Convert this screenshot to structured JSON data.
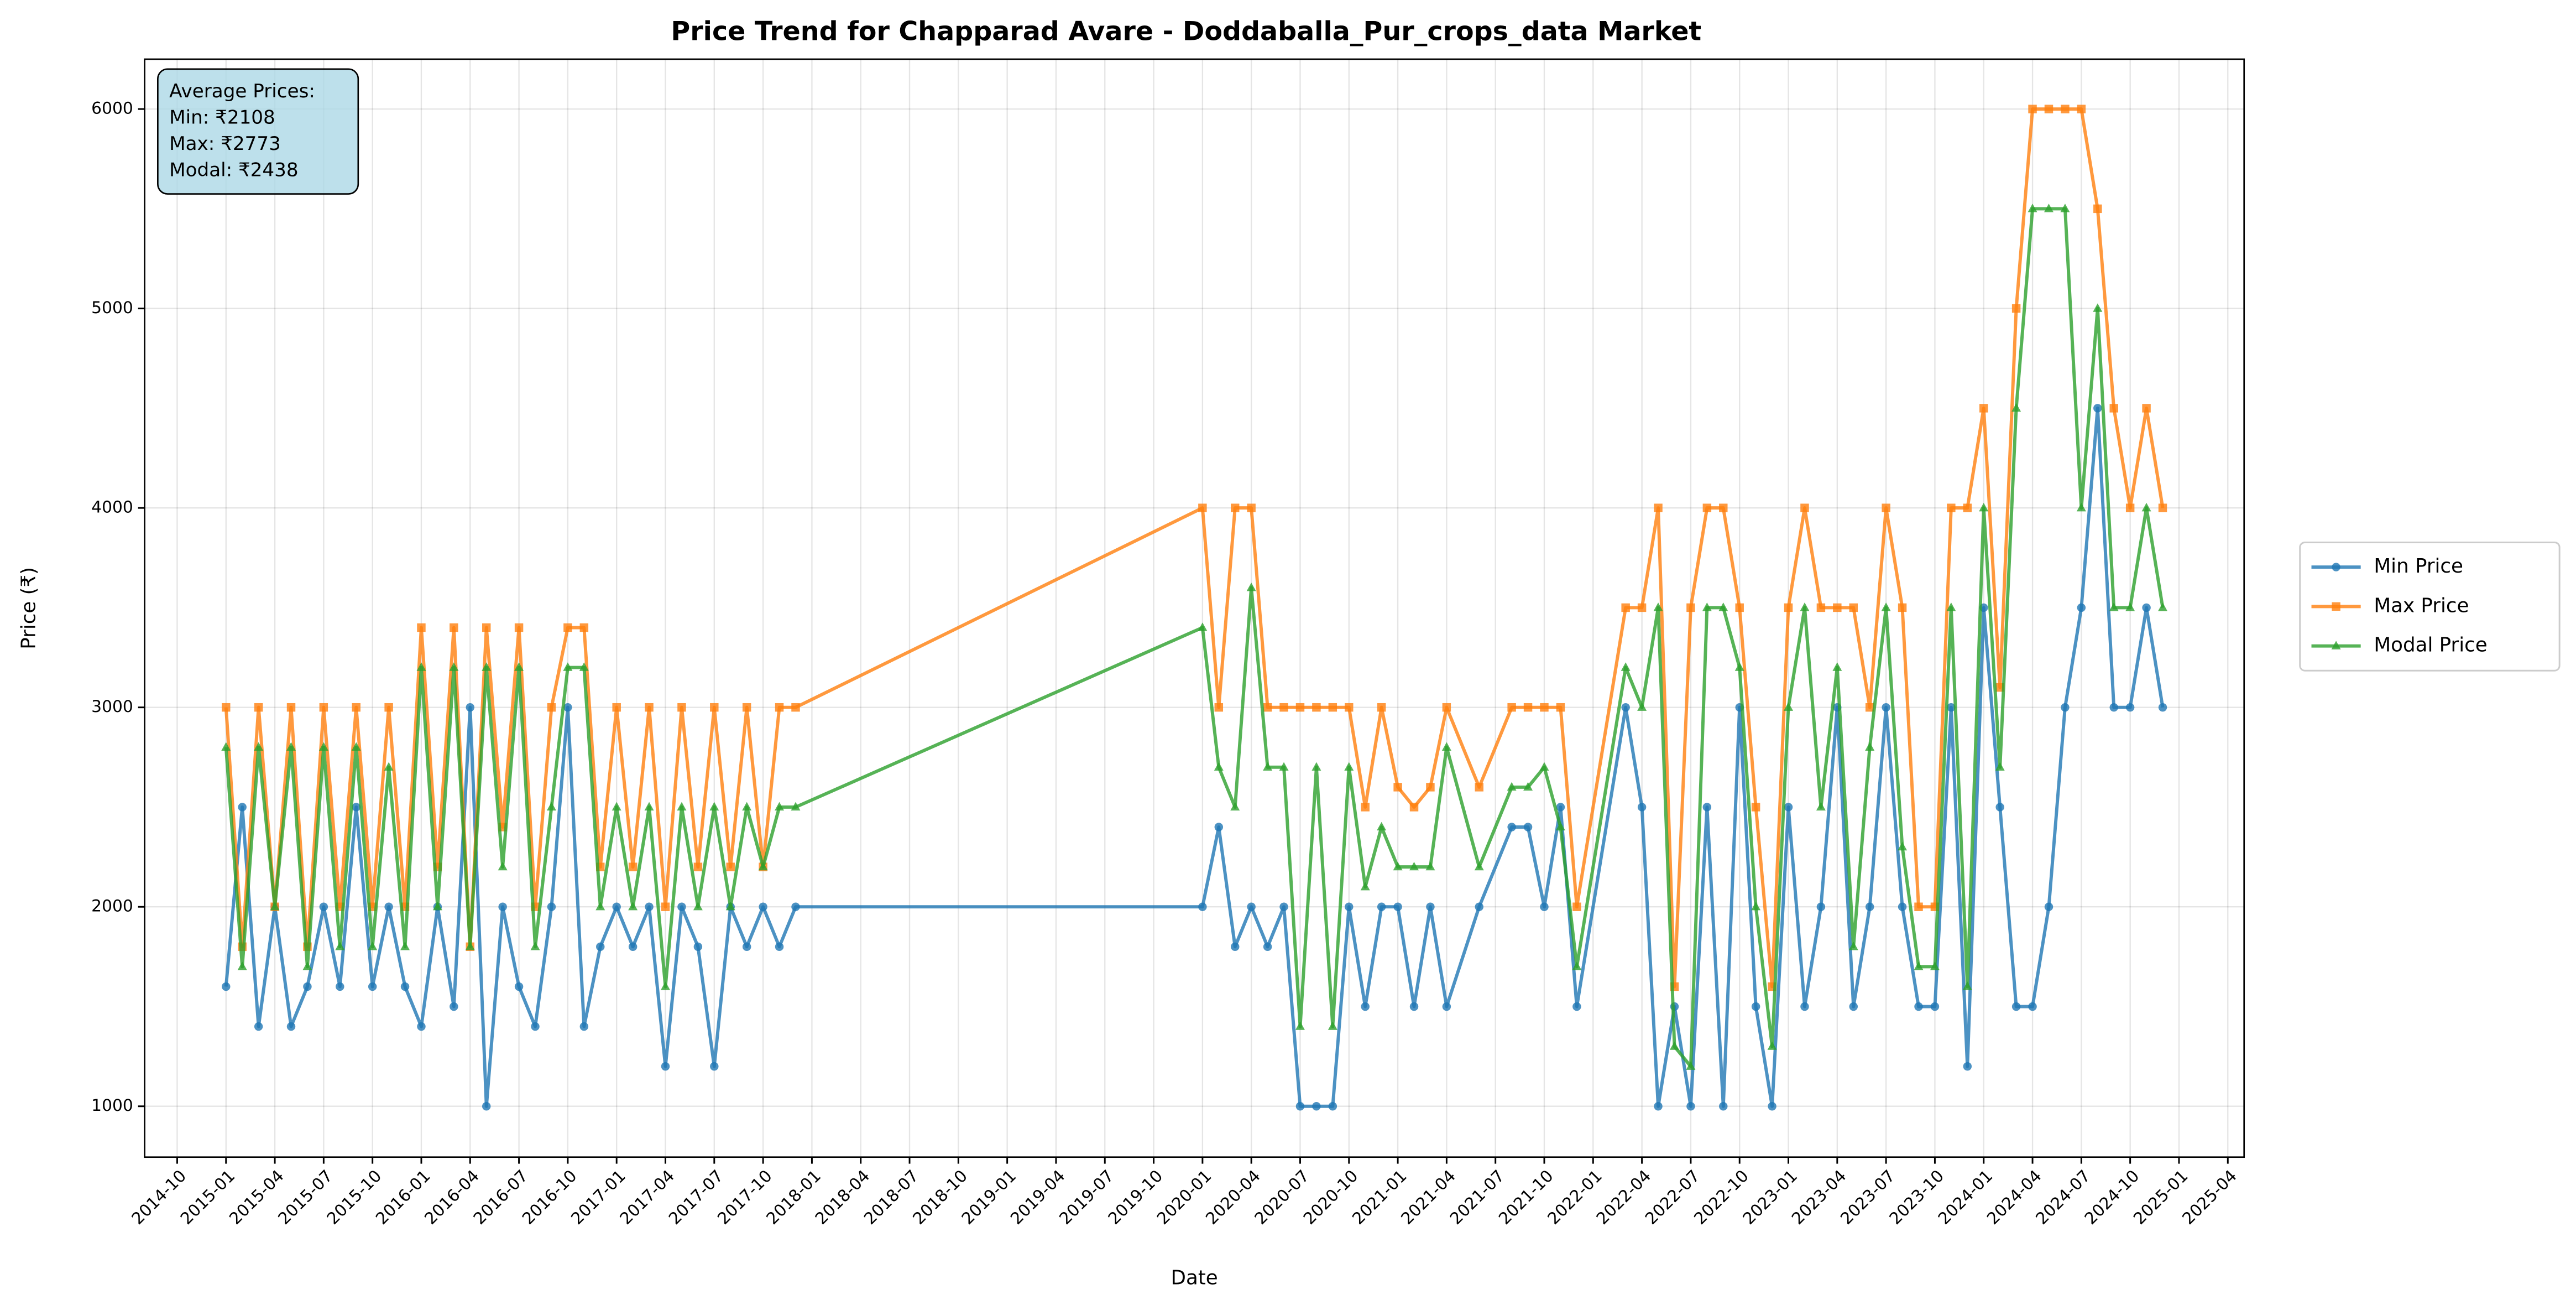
{
  "chart_data": {
    "type": "line",
    "title": "Price Trend for Chapparad Avare - Doddaballa_Pur_crops_data Market",
    "xlabel": "Date",
    "ylabel": "Price (₹)",
    "annotation": [
      "Average Prices:",
      "Min: ₹2108",
      "Max: ₹2773",
      "Modal: ₹2438"
    ],
    "x": [
      "2015-01",
      "2015-02",
      "2015-03",
      "2015-04",
      "2015-05",
      "2015-06",
      "2015-07",
      "2015-08",
      "2015-09",
      "2015-10",
      "2015-11",
      "2015-12",
      "2016-01",
      "2016-02",
      "2016-03",
      "2016-04",
      "2016-05",
      "2016-06",
      "2016-07",
      "2016-08",
      "2016-09",
      "2016-10",
      "2016-11",
      "2016-12",
      "2017-01",
      "2017-02",
      "2017-03",
      "2017-04",
      "2017-05",
      "2017-06",
      "2017-07",
      "2017-08",
      "2017-09",
      "2017-10",
      "2017-11",
      "2017-12",
      "2020-01",
      "2020-02",
      "2020-03",
      "2020-04",
      "2020-05",
      "2020-06",
      "2020-07",
      "2020-08",
      "2020-09",
      "2020-10",
      "2020-11",
      "2020-12",
      "2021-01",
      "2021-02",
      "2021-03",
      "2021-04",
      "2021-06",
      "2021-08",
      "2021-09",
      "2021-10",
      "2021-11",
      "2021-12",
      "2022-03",
      "2022-04",
      "2022-05",
      "2022-06",
      "2022-07",
      "2022-08",
      "2022-09",
      "2022-10",
      "2022-11",
      "2022-12",
      "2023-01",
      "2023-02",
      "2023-03",
      "2023-04",
      "2023-05",
      "2023-06",
      "2023-07",
      "2023-08",
      "2023-09",
      "2023-10",
      "2023-11",
      "2023-12",
      "2024-01",
      "2024-02",
      "2024-03",
      "2024-04",
      "2024-05",
      "2024-06",
      "2024-07",
      "2024-08",
      "2024-09",
      "2024-10",
      "2024-11",
      "2024-12"
    ],
    "series": [
      {
        "name": "Min Price",
        "color": "#1f77b4",
        "marker": "circle",
        "values": [
          1600,
          2500,
          1400,
          2000,
          1400,
          1600,
          2000,
          1600,
          2500,
          1600,
          2000,
          1600,
          1400,
          2000,
          1500,
          3000,
          1000,
          2000,
          1600,
          1400,
          2000,
          3000,
          1400,
          1800,
          2000,
          1800,
          2000,
          1200,
          2000,
          1800,
          1200,
          2000,
          1800,
          2000,
          1800,
          2000,
          2000,
          2400,
          1800,
          2000,
          1800,
          2000,
          1000,
          1000,
          1000,
          2000,
          1500,
          2000,
          2000,
          1500,
          2000,
          1500,
          2000,
          2400,
          2400,
          2000,
          2500,
          1500,
          3000,
          2500,
          1000,
          1500,
          1000,
          2500,
          1000,
          3000,
          1500,
          1000,
          2500,
          1500,
          2000,
          3000,
          1500,
          2000,
          3000,
          2000,
          1500,
          1500,
          3000,
          1200,
          3500,
          2500,
          1500,
          1500,
          2000,
          3000,
          3500,
          4500,
          3000,
          3000,
          3500,
          3000
        ]
      },
      {
        "name": "Max Price",
        "color": "#ff7f0e",
        "marker": "square",
        "values": [
          3000,
          1800,
          3000,
          2000,
          3000,
          1800,
          3000,
          2000,
          3000,
          2000,
          3000,
          2000,
          3400,
          2200,
          3400,
          1800,
          3400,
          2400,
          3400,
          2000,
          3000,
          3400,
          3400,
          2200,
          3000,
          2200,
          3000,
          2000,
          3000,
          2200,
          3000,
          2200,
          3000,
          2200,
          3000,
          3000,
          4000,
          3000,
          4000,
          4000,
          3000,
          3000,
          3000,
          3000,
          3000,
          3000,
          2500,
          3000,
          2600,
          2500,
          2600,
          3000,
          2600,
          3000,
          3000,
          3000,
          3000,
          2000,
          3500,
          3500,
          4000,
          1600,
          3500,
          4000,
          4000,
          3500,
          2500,
          1600,
          3500,
          4000,
          3500,
          3500,
          3500,
          3000,
          4000,
          3500,
          2000,
          2000,
          4000,
          4000,
          4500,
          3100,
          5000,
          6000,
          6000,
          6000,
          6000,
          5500,
          4500,
          4000,
          4500,
          4000
        ]
      },
      {
        "name": "Modal Price",
        "color": "#2ca02c",
        "marker": "triangle",
        "values": [
          2800,
          1700,
          2800,
          2000,
          2800,
          1700,
          2800,
          1800,
          2800,
          1800,
          2700,
          1800,
          3200,
          2000,
          3200,
          1800,
          3200,
          2200,
          3200,
          1800,
          2500,
          3200,
          3200,
          2000,
          2500,
          2000,
          2500,
          1600,
          2500,
          2000,
          2500,
          2000,
          2500,
          2200,
          2500,
          2500,
          3400,
          2700,
          2500,
          3600,
          2700,
          2700,
          1400,
          2700,
          1400,
          2700,
          2100,
          2400,
          2200,
          2200,
          2200,
          2800,
          2200,
          2600,
          2600,
          2700,
          2400,
          1700,
          3200,
          3000,
          3500,
          1300,
          1200,
          3500,
          3500,
          3200,
          2000,
          1300,
          3000,
          3500,
          2500,
          3200,
          1800,
          2800,
          3500,
          2300,
          1700,
          1700,
          3500,
          1600,
          4000,
          2700,
          4500,
          5500,
          5500,
          5500,
          4000,
          5000,
          3500,
          3500,
          4000,
          3500
        ]
      }
    ],
    "xlim": [
      "2014-08",
      "2025-05"
    ],
    "xticks": [
      "2014-10",
      "2015-01",
      "2015-04",
      "2015-07",
      "2015-10",
      "2016-01",
      "2016-04",
      "2016-07",
      "2016-10",
      "2017-01",
      "2017-04",
      "2017-07",
      "2017-10",
      "2018-01",
      "2018-04",
      "2018-07",
      "2018-10",
      "2019-01",
      "2019-04",
      "2019-07",
      "2019-10",
      "2020-01",
      "2020-04",
      "2020-07",
      "2020-10",
      "2021-01",
      "2021-04",
      "2021-07",
      "2021-10",
      "2022-01",
      "2022-04",
      "2022-07",
      "2022-10",
      "2023-01",
      "2023-04",
      "2023-07",
      "2023-10",
      "2024-01",
      "2024-04",
      "2024-07",
      "2024-10",
      "2025-01",
      "2025-04"
    ],
    "ylim": [
      745,
      6250
    ],
    "yticks": [
      1000,
      2000,
      3000,
      4000,
      5000,
      6000
    ],
    "grid": true,
    "legend": "right outside"
  }
}
